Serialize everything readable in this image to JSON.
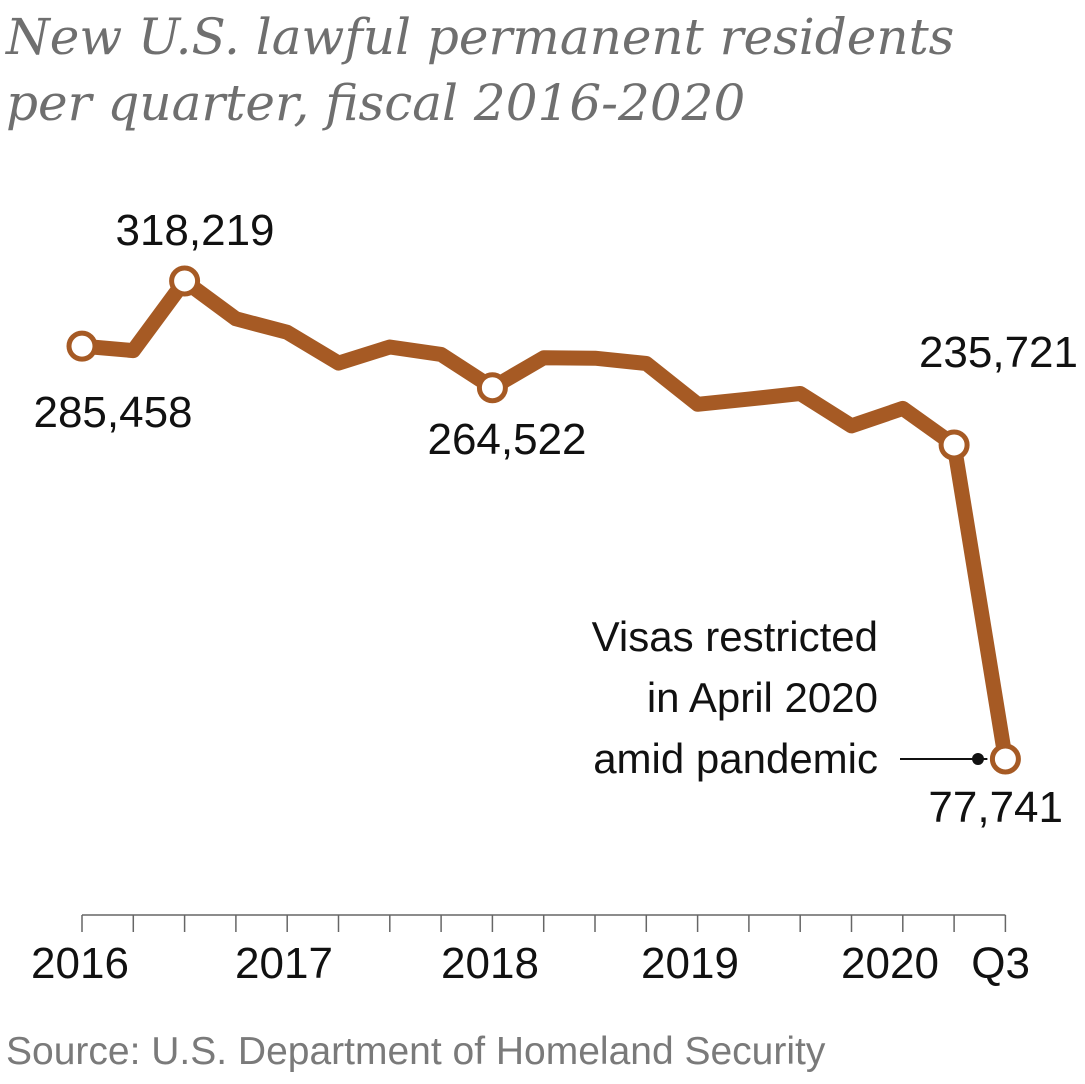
{
  "title_line1": "New U.S. lawful permanent residents",
  "title_line2": "per quarter, fiscal 2016-2020",
  "source": "Source: U.S. Department of Homeland Security",
  "annotation": {
    "lines": [
      "Visas restricted",
      "in April 2020",
      "amid pandemic"
    ]
  },
  "colors": {
    "line": "#a65a24",
    "text": "#111111",
    "muted": "#707070"
  },
  "chart_data": {
    "type": "line",
    "title": "New U.S. lawful permanent residents per quarter, fiscal 2016-2020",
    "xlabel": "",
    "ylabel": "",
    "x": [
      "2016 Q1",
      "2016 Q2",
      "2016 Q3",
      "2016 Q4",
      "2017 Q1",
      "2017 Q2",
      "2017 Q3",
      "2017 Q4",
      "2018 Q1",
      "2018 Q2",
      "2018 Q3",
      "2018 Q4",
      "2019 Q1",
      "2019 Q2",
      "2019 Q3",
      "2019 Q4",
      "2020 Q1",
      "2020 Q2",
      "2020 Q3"
    ],
    "x_tick_labels": [
      "2016",
      "2017",
      "2018",
      "2019",
      "2020",
      "Q3"
    ],
    "series": [
      {
        "values": [
          285458,
          283200,
          318219,
          299200,
          292400,
          276900,
          285000,
          281300,
          264522,
          279600,
          279400,
          276700,
          256200,
          258800,
          261600,
          245300,
          254100,
          235721,
          77741
        ]
      }
    ],
    "data_labels": [
      {
        "index": 0,
        "text": "285,458"
      },
      {
        "index": 2,
        "text": "318,219"
      },
      {
        "index": 8,
        "text": "264,522"
      },
      {
        "index": 17,
        "text": "235,721"
      },
      {
        "index": 18,
        "text": "77,741"
      }
    ],
    "grid": false,
    "legend": "none"
  }
}
